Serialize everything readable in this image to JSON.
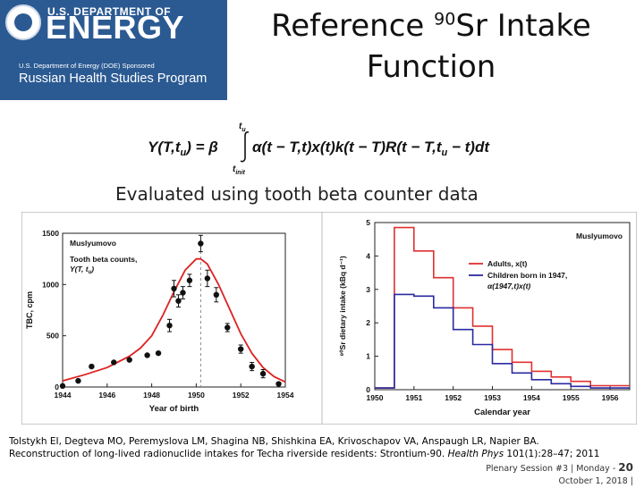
{
  "logo": {
    "department": "U.S. DEPARTMENT OF",
    "energy": "ENERGY",
    "sponsor": "U.S. Department of Energy (DOE) Sponsored",
    "program": "Russian Health Studies Program",
    "brand_color": "#2b5a92"
  },
  "slide": {
    "title_pre": "Reference ",
    "title_sup": "90",
    "title_post": "Sr Intake",
    "title_line2": "Function",
    "subtitle": "Evaluated using tooth beta counter data",
    "formula": {
      "lhs": "Y(T,t",
      "lhs_sub": "u",
      "eq": ") = β",
      "int_upper": "t",
      "int_upper_sub": "u",
      "int_lower": "t",
      "int_lower_sub": "init",
      "body": "α(t − T,t)x(t)k(t − T)R(t − T,t",
      "body_sub": "u",
      "tail": " − t)dt"
    }
  },
  "chart_data": [
    {
      "type": "scatter",
      "title": "Muslyumovo",
      "legend_text": "Tooth beta counts,",
      "legend_text2": "Y(T, t",
      "legend_text2_sub": "u",
      "legend_text2_end": ")",
      "xlabel": "Year of birth",
      "ylabel": "TBC, cpm",
      "xlim": [
        1944,
        1954
      ],
      "ylim": [
        0,
        1500
      ],
      "xticks": [
        "1944",
        "1946",
        "1948",
        "1950",
        "1952",
        "1954"
      ],
      "yticks": [
        "0",
        "500",
        "1000",
        "1500"
      ],
      "points": [
        {
          "x": 1944.0,
          "y": 10,
          "err": 0
        },
        {
          "x": 1944.7,
          "y": 60,
          "err": 0
        },
        {
          "x": 1945.3,
          "y": 200,
          "err": 0
        },
        {
          "x": 1946.3,
          "y": 240,
          "err": 0
        },
        {
          "x": 1947.0,
          "y": 265,
          "err": 0
        },
        {
          "x": 1947.8,
          "y": 310,
          "err": 0
        },
        {
          "x": 1948.3,
          "y": 330,
          "err": 0
        },
        {
          "x": 1948.8,
          "y": 600,
          "err": 60
        },
        {
          "x": 1949.0,
          "y": 960,
          "err": 80
        },
        {
          "x": 1949.2,
          "y": 840,
          "err": 60
        },
        {
          "x": 1949.4,
          "y": 920,
          "err": 60
        },
        {
          "x": 1949.7,
          "y": 1040,
          "err": 60
        },
        {
          "x": 1950.2,
          "y": 1400,
          "err": 80
        },
        {
          "x": 1950.5,
          "y": 1060,
          "err": 80
        },
        {
          "x": 1950.9,
          "y": 900,
          "err": 70
        },
        {
          "x": 1951.4,
          "y": 580,
          "err": 40
        },
        {
          "x": 1952.0,
          "y": 370,
          "err": 40
        },
        {
          "x": 1952.5,
          "y": 200,
          "err": 40
        },
        {
          "x": 1953.0,
          "y": 130,
          "err": 40
        },
        {
          "x": 1953.7,
          "y": 30,
          "err": 0
        }
      ],
      "fit_curve": {
        "x": [
          1944.0,
          1945.0,
          1946.0,
          1947.0,
          1947.5,
          1948.0,
          1948.5,
          1949.0,
          1949.5,
          1950.0,
          1950.2,
          1950.5,
          1951.0,
          1951.5,
          1952.0,
          1952.5,
          1953.0,
          1953.5,
          1954.0
        ],
        "y": [
          60,
          120,
          190,
          300,
          380,
          500,
          700,
          930,
          1140,
          1250,
          1250,
          1200,
          1000,
          760,
          520,
          330,
          190,
          100,
          50
        ]
      },
      "dashed_marker_x": 1950.2,
      "colors": {
        "points": "#111111",
        "fit": "#dd2222"
      }
    },
    {
      "type": "line",
      "title": "Muslyumovo",
      "xlabel": "Calendar year",
      "ylabel": "⁹⁰Sr dietary intake (kBq d⁻¹)",
      "xlim": [
        1950,
        1956.5
      ],
      "ylim": [
        0,
        5
      ],
      "xticks": [
        "1950",
        "1951",
        "1952",
        "1953",
        "1954",
        "1955",
        "1956"
      ],
      "yticks": [
        "0",
        "1",
        "2",
        "3",
        "4",
        "5"
      ],
      "series": [
        {
          "name": "Adults, x(t)",
          "color": "#e03030",
          "step": true,
          "x": [
            1950.0,
            1950.5,
            1951.0,
            1951.5,
            1952.0,
            1952.5,
            1953.0,
            1953.5,
            1954.0,
            1954.5,
            1955.0,
            1955.5,
            1956.0
          ],
          "y": [
            0.05,
            4.85,
            4.15,
            3.35,
            2.45,
            1.9,
            1.2,
            0.82,
            0.55,
            0.38,
            0.25,
            0.12,
            0.12
          ]
        },
        {
          "name": "Children born in 1947,",
          "name2": "α(1947,t)x(t)",
          "color": "#2a2aa0",
          "step": true,
          "x": [
            1950.0,
            1950.5,
            1951.0,
            1951.5,
            1952.0,
            1952.5,
            1953.0,
            1953.5,
            1954.0,
            1954.5,
            1955.0,
            1955.5,
            1956.0
          ],
          "y": [
            0.05,
            2.85,
            2.8,
            2.45,
            1.8,
            1.35,
            0.78,
            0.5,
            0.3,
            0.18,
            0.1,
            0.05,
            0.05
          ]
        }
      ]
    }
  ],
  "citation": {
    "line1": "Tolstykh EI, Degteva MO, Peremyslova LM, Shagina NB, Shishkina EA, Krivoschapov VA, Anspaugh LR, Napier BA.",
    "line2_pre": "Reconstruction of long-lived radionuclide intakes for Techa riverside residents: Strontium-90. ",
    "journal": "Health Phys",
    "line2_post": " 101(1):28–47; 2011"
  },
  "footer": {
    "session": "Plenary Session #3 | Monday -",
    "date": "October 1, 2018 |",
    "slide_number": "20"
  }
}
